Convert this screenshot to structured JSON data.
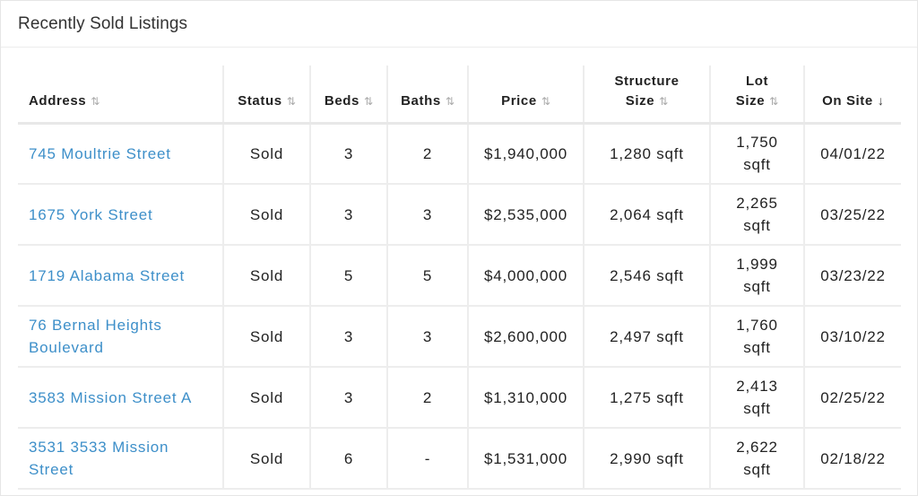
{
  "panel": {
    "title": "Recently Sold Listings"
  },
  "columns": [
    {
      "key": "address",
      "line1": "",
      "line2": "Address",
      "sort_icon": "sort-icon"
    },
    {
      "key": "status",
      "line1": "",
      "line2": "Status",
      "sort_icon": "sort-icon"
    },
    {
      "key": "beds",
      "line1": "",
      "line2": "Beds",
      "sort_icon": "sort-icon"
    },
    {
      "key": "baths",
      "line1": "",
      "line2": "Baths",
      "sort_icon": "sort-icon"
    },
    {
      "key": "price",
      "line1": "",
      "line2": "Price",
      "sort_icon": "sort-icon"
    },
    {
      "key": "structure_size",
      "line1": "Structure",
      "line2": "Size",
      "sort_icon": "sort-icon"
    },
    {
      "key": "lot_size",
      "line1": "Lot",
      "line2": "Size",
      "sort_icon": "sort-icon"
    },
    {
      "key": "on_site",
      "line1": "",
      "line2": "On Site",
      "sort_icon": "sort-down-icon"
    }
  ],
  "sort_glyph": "⇅",
  "sort_active_glyph": "↓",
  "rows": [
    {
      "address": "745 Moultrie Street",
      "status": "Sold",
      "beds": "3",
      "baths": "2",
      "price": "$1,940,000",
      "structure_size": "1,280 sqft",
      "lot_size_num": "1,750",
      "lot_size_unit": "sqft",
      "on_site": "04/01/22"
    },
    {
      "address": "1675 York Street",
      "status": "Sold",
      "beds": "3",
      "baths": "3",
      "price": "$2,535,000",
      "structure_size": "2,064 sqft",
      "lot_size_num": "2,265",
      "lot_size_unit": "sqft",
      "on_site": "03/25/22"
    },
    {
      "address": "1719 Alabama Street",
      "status": "Sold",
      "beds": "5",
      "baths": "5",
      "price": "$4,000,000",
      "structure_size": "2,546 sqft",
      "lot_size_num": "1,999",
      "lot_size_unit": "sqft",
      "on_site": "03/23/22"
    },
    {
      "address": "76 Bernal Heights Boulevard",
      "status": "Sold",
      "beds": "3",
      "baths": "3",
      "price": "$2,600,000",
      "structure_size": "2,497 sqft",
      "lot_size_num": "1,760",
      "lot_size_unit": "sqft",
      "on_site": "03/10/22"
    },
    {
      "address": "3583 Mission Street A",
      "status": "Sold",
      "beds": "3",
      "baths": "2",
      "price": "$1,310,000",
      "structure_size": "1,275 sqft",
      "lot_size_num": "2,413",
      "lot_size_unit": "sqft",
      "on_site": "02/25/22"
    },
    {
      "address": "3531 3533 Mission Street",
      "status": "Sold",
      "beds": "6",
      "baths": "-",
      "price": "$1,531,000",
      "structure_size": "2,990 sqft",
      "lot_size_num": "2,622",
      "lot_size_unit": "sqft",
      "on_site": "02/18/22"
    }
  ]
}
